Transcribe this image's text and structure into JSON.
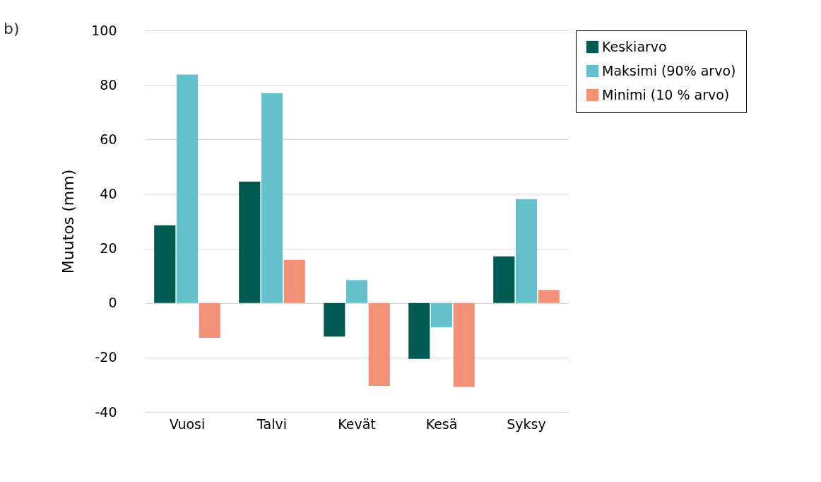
{
  "chart_data": {
    "type": "bar",
    "ylabel": "Muutos (mm)",
    "annotations": [
      "b)"
    ],
    "categories": [
      "Vuosi",
      "Talvi",
      "Kevät",
      "Kesä",
      "Syksy"
    ],
    "series": [
      {
        "name": "Keskiarvo",
        "color": "#005a50",
        "values": [
          28.5,
          44.5,
          -12.3,
          -20.5,
          17.1
        ]
      },
      {
        "name": "Maksimi (90% arvo)",
        "color": "#64c1cb",
        "values": [
          83.8,
          76.9,
          8.4,
          -8.9,
          38.1
        ]
      },
      {
        "name": "Minimi (10 % arvo)",
        "color": "#f29078",
        "values": [
          -12.8,
          15.8,
          -30.4,
          -30.8,
          4.8
        ]
      }
    ],
    "ylim": [
      -40,
      100
    ],
    "yticks": [
      -40,
      -20,
      0,
      20,
      40,
      60,
      80,
      100
    ],
    "grid": "y",
    "legend": "right"
  }
}
